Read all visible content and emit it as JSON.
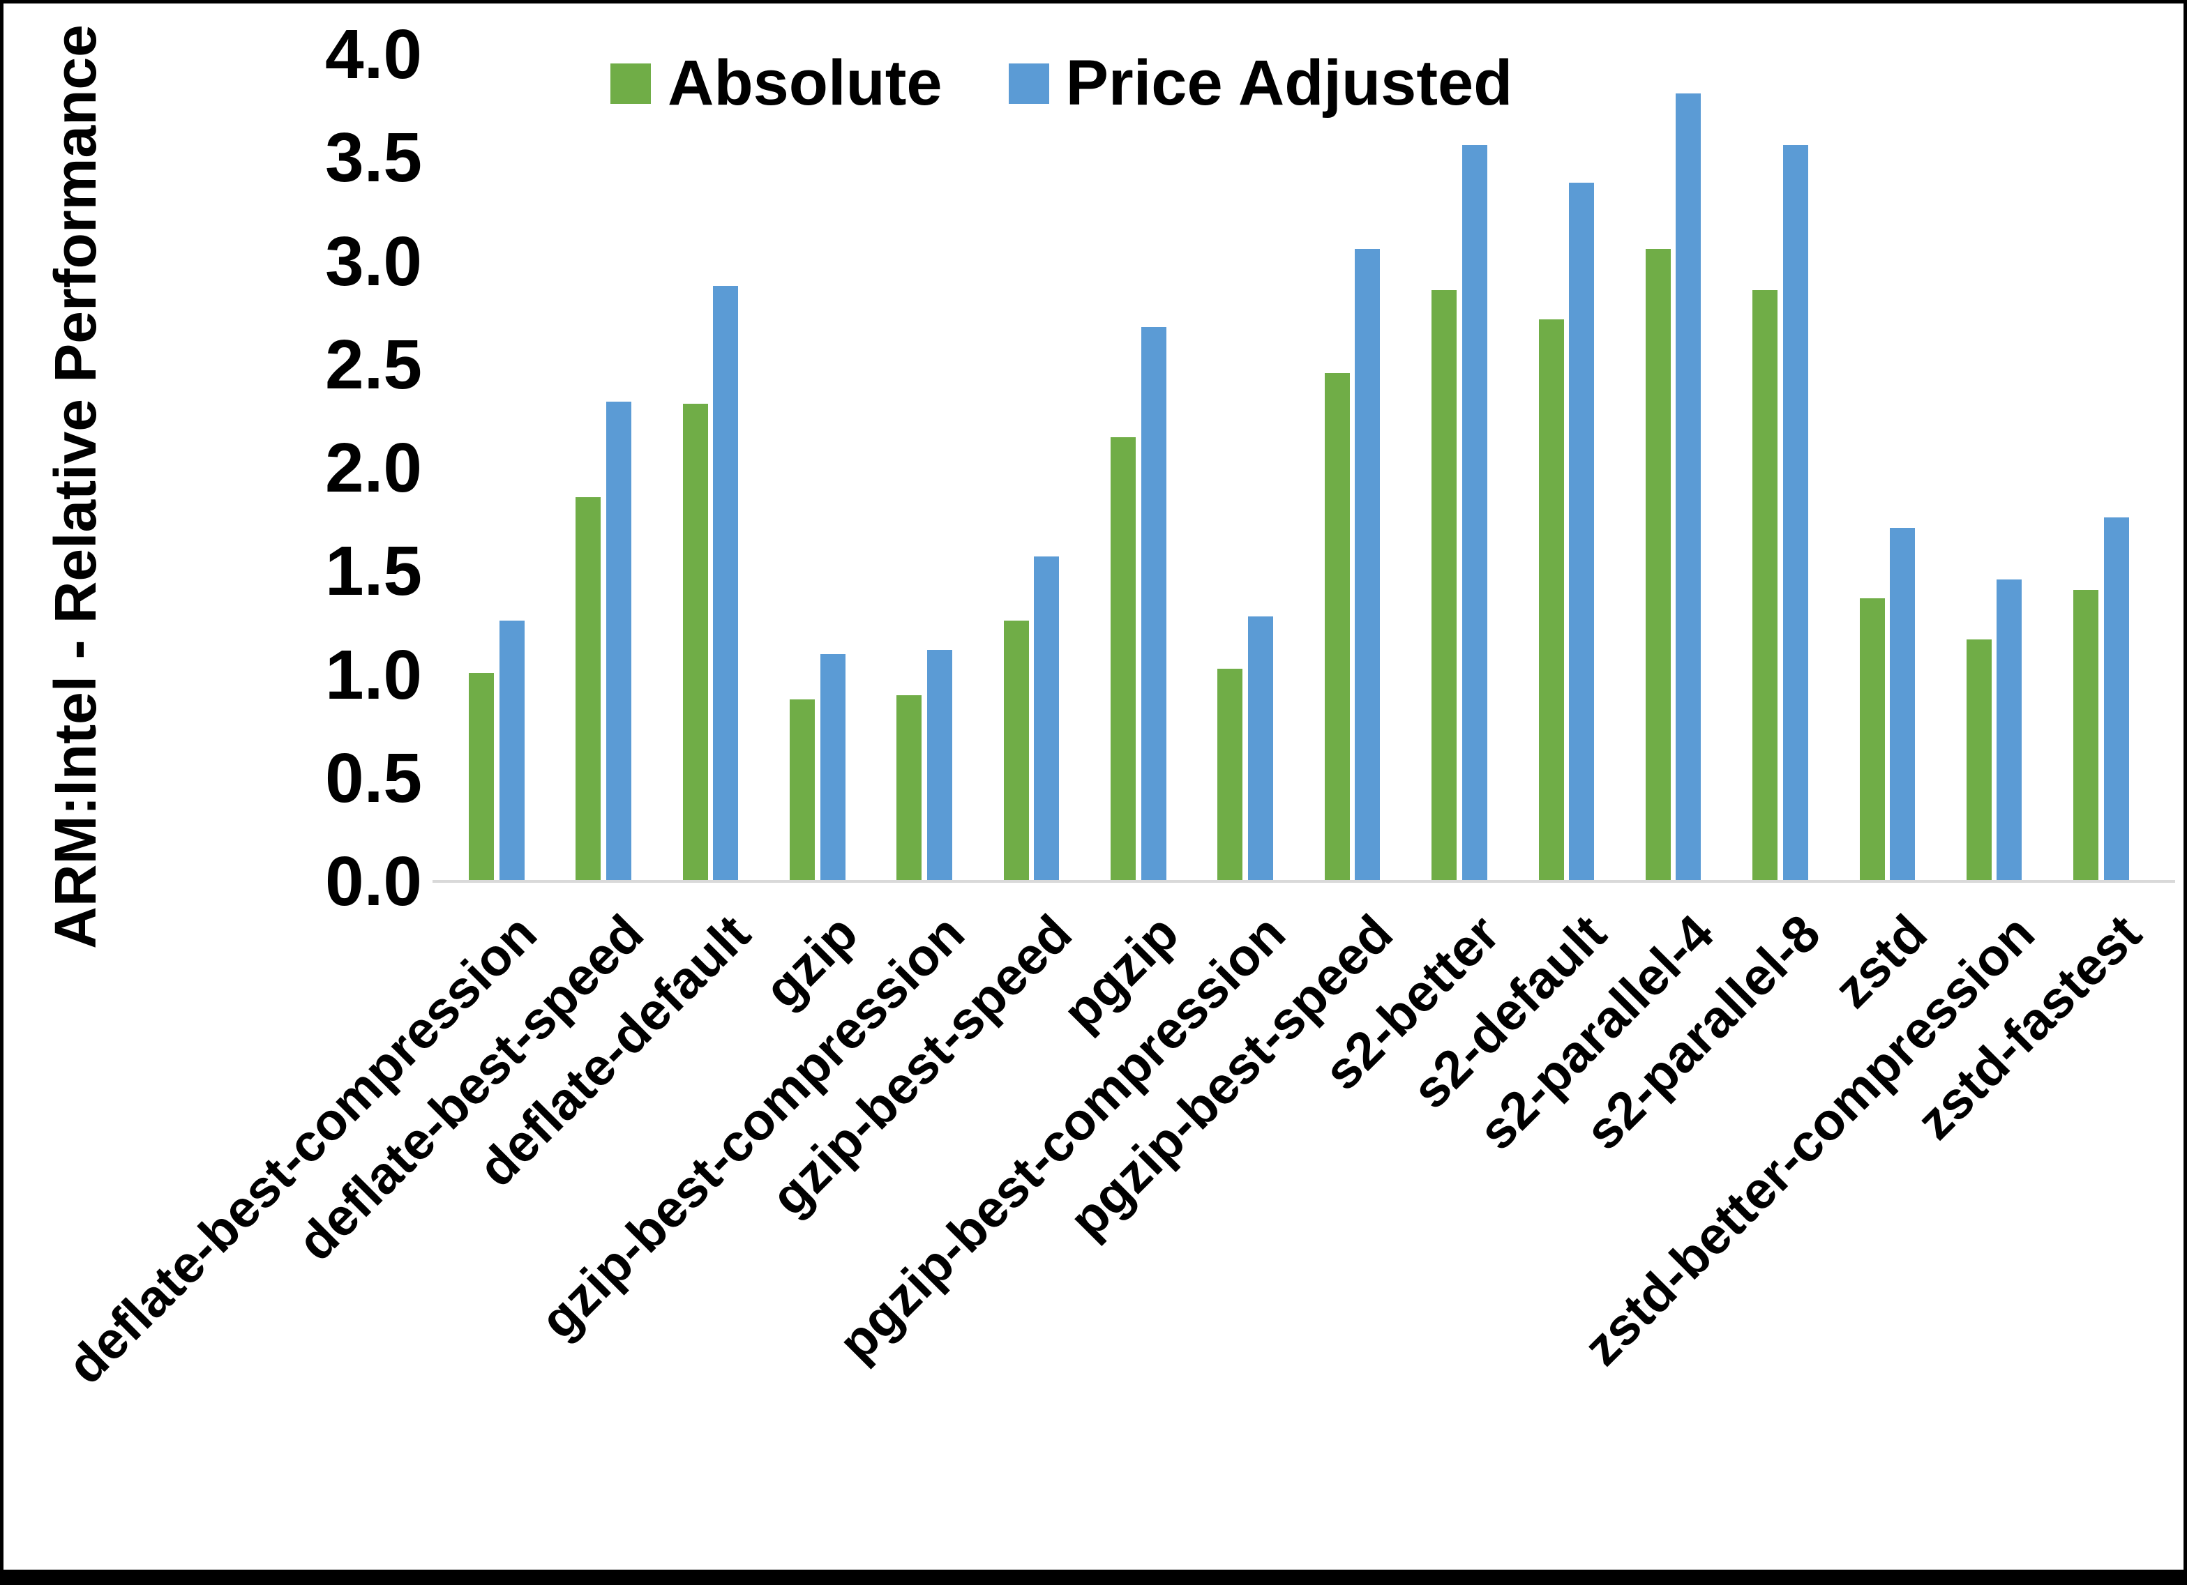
{
  "chart_data": {
    "type": "bar",
    "title": "",
    "xlabel": "",
    "ylabel": "ARM:Intel - Relative Performance",
    "ylim": [
      0.0,
      4.0
    ],
    "ytick_step": 0.5,
    "yticks": [
      "4.0",
      "3.5",
      "3.0",
      "2.5",
      "2.0",
      "1.5",
      "1.0",
      "0.5",
      "0.0"
    ],
    "grid": false,
    "legend_position": "top-center",
    "axis_line_color": "#d9d9d9",
    "categories": [
      "deflate-best-compression",
      "deflate-best-speed",
      "deflate-default",
      "gzip",
      "gzip-best-compression",
      "gzip-best-speed",
      "pgzip",
      "pgzip-best-compression",
      "pgzip-best-speed",
      "s2-better",
      "s2-default",
      "s2-parallel-4",
      "s2-parallel-8",
      "zstd",
      "zstd-better-compression",
      "zstd-fastest"
    ],
    "series": [
      {
        "name": "Absolute",
        "color": "#70AD47",
        "values": [
          1.01,
          1.86,
          2.31,
          0.88,
          0.9,
          1.26,
          2.15,
          1.03,
          2.46,
          2.86,
          2.72,
          3.06,
          2.86,
          1.37,
          1.17,
          1.41
        ]
      },
      {
        "name": "Price Adjusted",
        "color": "#5B9BD5",
        "values": [
          1.26,
          2.32,
          2.88,
          1.1,
          1.12,
          1.57,
          2.68,
          1.28,
          3.06,
          3.56,
          3.38,
          3.81,
          3.56,
          1.71,
          1.46,
          1.76
        ]
      }
    ]
  }
}
